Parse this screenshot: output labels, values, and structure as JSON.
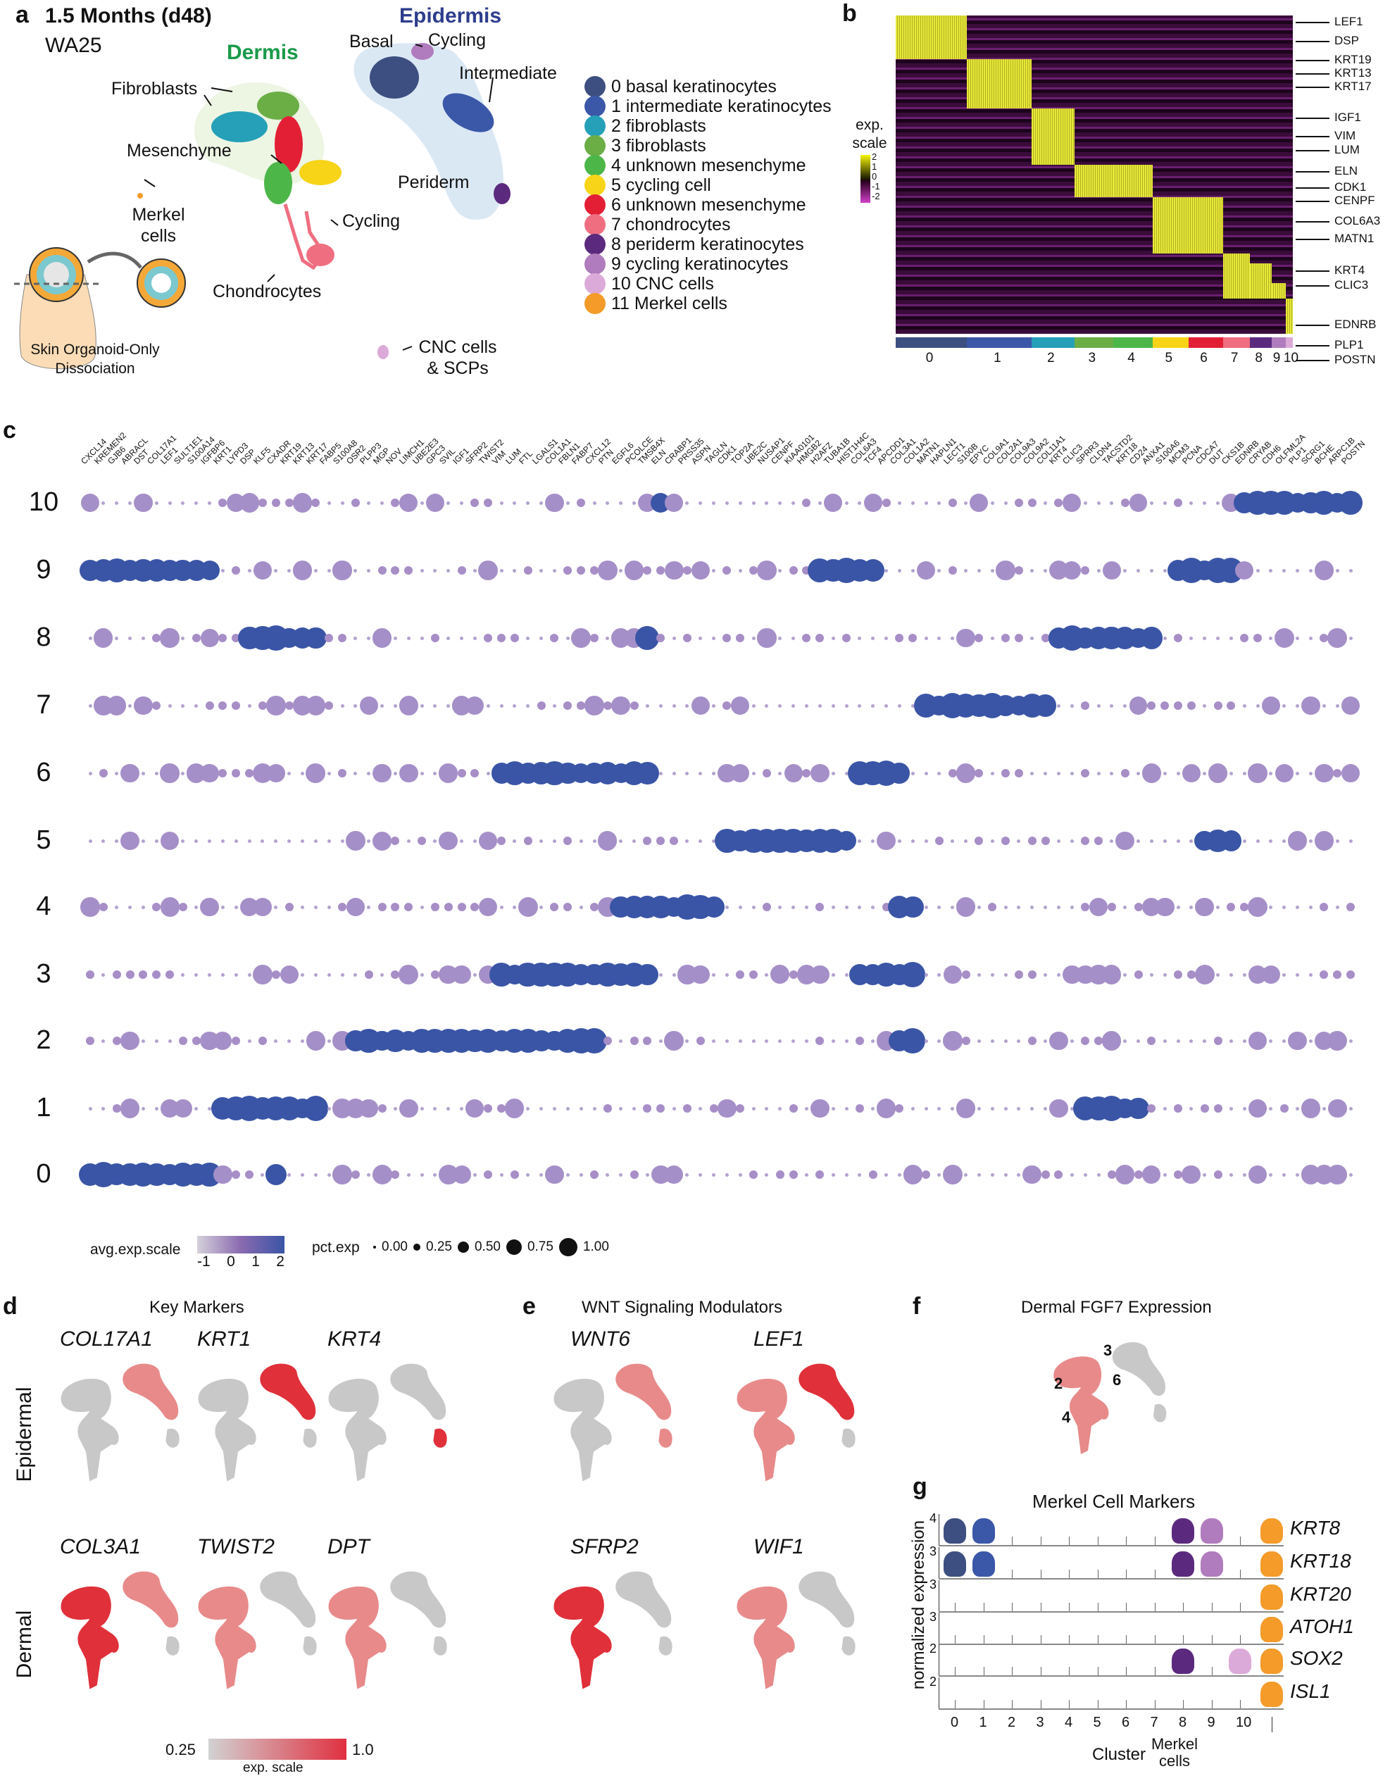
{
  "panel_a": {
    "label": "a",
    "title": "1.5 Months (d48)",
    "subtitle": "WA25",
    "region_dermis": "Dermis",
    "region_epidermis": "Epidermis",
    "annotations": [
      "Fibroblasts",
      "Mesenchyme",
      "Merkel cells",
      "Chondrocytes",
      "Cycling",
      "Basal",
      "Cycling",
      "Intermediate",
      "Periderm",
      "CNC cells & SCPs"
    ],
    "schematic_caption": "Skin Organoid-Only Dissociation",
    "legend": [
      {
        "label": "0 basal keratinocytes",
        "color": "#3d4f80"
      },
      {
        "label": "1 intermediate keratinocytes",
        "color": "#3b57a8"
      },
      {
        "label": "2 fibroblasts",
        "color": "#25a0b8"
      },
      {
        "label": "3 fibroblasts",
        "color": "#6aae45"
      },
      {
        "label": "4 unknown mesenchyme",
        "color": "#4cb648"
      },
      {
        "label": "5 cycling cell",
        "color": "#f7d417"
      },
      {
        "label": "6 unknown mesenchyme",
        "color": "#e31f35"
      },
      {
        "label": "7 chondrocytes",
        "color": "#ef6e80"
      },
      {
        "label": "8 periderm keratinocytes",
        "color": "#5b2a7e"
      },
      {
        "label": "9 cycling keratinocytes",
        "color": "#b07cbd"
      },
      {
        "label": "10 CNC cells",
        "color": "#dcaad8"
      },
      {
        "label": "11 Merkel cells",
        "color": "#f49b2a"
      }
    ]
  },
  "panel_b": {
    "label": "b",
    "scale_title": "exp. scale",
    "scale_ticks": [
      "2",
      "1",
      "0",
      "-1",
      "-2"
    ],
    "highlight_genes": [
      "LEF1",
      "DSP",
      "KRT19",
      "KRT13",
      "KRT17",
      "IGF1",
      "VIM",
      "LUM",
      "ELN",
      "CDK1",
      "CENPF",
      "COL6A3",
      "MATN1",
      "KRT4",
      "CLIC3",
      "EDNRB",
      "PLP1",
      "POSTN"
    ],
    "cluster_labels": [
      "0",
      "1",
      "2",
      "3",
      "4",
      "5",
      "6",
      "7",
      "8",
      "9",
      "10"
    ]
  },
  "panel_c": {
    "label": "c",
    "legend_color_title": "avg.exp.scale",
    "legend_color_ticks": [
      "-1",
      "0",
      "1",
      "2"
    ],
    "legend_size_title": "pct.exp",
    "legend_size_ticks": [
      "0.00",
      "0.25",
      "0.50",
      "0.75",
      "1.00"
    ]
  },
  "panel_d": {
    "label": "d",
    "title": "Key Markers",
    "row_labels": [
      "Epidermal",
      "Dermal"
    ],
    "genes": [
      "COL17A1",
      "KRT1",
      "KRT4",
      "COL3A1",
      "TWIST2",
      "DPT"
    ],
    "scale_min": "0.25",
    "scale_max": "1.0",
    "scale_title": "exp. scale"
  },
  "panel_e": {
    "label": "e",
    "title": "WNT Signaling Modulators",
    "genes": [
      "WNT6",
      "LEF1",
      "SFRP2",
      "WIF1"
    ]
  },
  "panel_f": {
    "label": "f",
    "title": "Dermal FGF7 Expression",
    "cluster_marks": [
      "3",
      "2",
      "6",
      "4"
    ]
  },
  "panel_g": {
    "label": "g",
    "title": "Merkel Cell Markers",
    "ylabel": "normalized expression",
    "xlabel": "Cluster",
    "merkel_label": "Merkel cells",
    "x_ticks": [
      "0",
      "1",
      "2",
      "3",
      "4",
      "5",
      "6",
      "7",
      "8",
      "9",
      "10"
    ],
    "genes": [
      {
        "name": "KRT8",
        "ymax": "4"
      },
      {
        "name": "KRT18",
        "ymax": "3"
      },
      {
        "name": "KRT20",
        "ymax": "3"
      },
      {
        "name": "ATOH1",
        "ymax": "3"
      },
      {
        "name": "SOX2",
        "ymax": "2"
      },
      {
        "name": "ISL1",
        "ymax": "2"
      }
    ]
  },
  "chart_data": [
    {
      "panel": "c",
      "type": "dot",
      "title": "",
      "x_genes": [
        "CXCL14",
        "KREMEN2",
        "GJB6",
        "ABRACL",
        "DST",
        "COL17A1",
        "LEF1",
        "SULT1E1",
        "S100A14",
        "IGFBP6",
        "KRT1",
        "LYPD3",
        "DSP",
        "KLF5",
        "CXADR",
        "KRT19",
        "KRT13",
        "KRT17",
        "FABP5",
        "S100A8",
        "OSR2",
        "PLPP3",
        "MGP",
        "NOV",
        "LIMCH1",
        "UBE2E3",
        "GPC3",
        "SVIL",
        "IGF1",
        "SFRP2",
        "TWIST2",
        "VIM",
        "LUM",
        "FTL",
        "LGALS1",
        "COL1A1",
        "FBLN1",
        "FABP7",
        "CXCL12",
        "PTN",
        "EGFL6",
        "PCOLCE",
        "TMSB4X",
        "ELN",
        "CRABP1",
        "PRSS35",
        "ASPN",
        "TAGLN",
        "CDK1",
        "TOP2A",
        "UBE2C",
        "NUSAP1",
        "CENPF",
        "KIAA0101",
        "HMGB2",
        "H2AFZ",
        "TUBA1B",
        "HIST1H4C",
        "COL6A3",
        "TCF4",
        "APCDD1",
        "COL3A1",
        "COL1A2",
        "MATN1",
        "HAPLN1",
        "LECT1",
        "S100B",
        "EPYC",
        "COL9A1",
        "COL2A1",
        "COL9A3",
        "COL9A2",
        "COL11A1",
        "KRT4",
        "CLIC3",
        "SPRR3",
        "CLDN4",
        "TACSTD2",
        "KRT18",
        "CD24",
        "ANXA1",
        "S100A6",
        "MCM3",
        "PCNA",
        "CDCA7",
        "DUT",
        "CKS1B",
        "EDNRB",
        "CRYAB",
        "CDH6",
        "OLFML2A",
        "PLP1",
        "SCRG1",
        "BCHE",
        "ARPC1B",
        "POSTN"
      ],
      "y_clusters": [
        "10",
        "9",
        "8",
        "7",
        "6",
        "5",
        "4",
        "3",
        "2",
        "1",
        "0"
      ],
      "high_expression_ranges": {
        "10": [
          [
            87,
            95
          ],
          [
            43,
            43
          ]
        ],
        "9": [
          [
            0,
            9
          ],
          [
            82,
            86
          ],
          [
            55,
            59
          ]
        ],
        "8": [
          [
            12,
            17
          ],
          [
            73,
            80
          ],
          [
            42,
            42
          ]
        ],
        "7": [
          [
            63,
            72
          ]
        ],
        "6": [
          [
            31,
            42
          ],
          [
            58,
            61
          ]
        ],
        "5": [
          [
            48,
            57
          ],
          [
            84,
            86
          ]
        ],
        "4": [
          [
            40,
            47
          ],
          [
            61,
            62
          ]
        ],
        "3": [
          [
            31,
            42
          ],
          [
            58,
            62
          ]
        ],
        "2": [
          [
            20,
            30
          ],
          [
            31,
            38
          ],
          [
            61,
            62
          ]
        ],
        "1": [
          [
            10,
            17
          ],
          [
            75,
            79
          ]
        ],
        "0": [
          [
            0,
            9
          ],
          [
            14,
            14
          ]
        ]
      },
      "color_scale": {
        "min": -1,
        "max": 2,
        "low": "#cfcad6",
        "high": "#3a55a6"
      },
      "size_scale": {
        "min": 0,
        "max": 1
      }
    },
    {
      "panel": "b",
      "type": "heatmap",
      "color_scale": {
        "min": -2,
        "max": 2,
        "low": "#d040c8",
        "mid": "#000000",
        "high": "#f5f500"
      },
      "x": [
        "0",
        "1",
        "2",
        "3",
        "4",
        "5",
        "6",
        "7",
        "8",
        "9",
        "10"
      ],
      "row_labels": [
        "LEF1",
        "DSP",
        "KRT19",
        "KRT13",
        "KRT17",
        "IGF1",
        "VIM",
        "LUM",
        "ELN",
        "CDK1",
        "CENPF",
        "COL6A3",
        "MATN1",
        "KRT4",
        "CLIC3",
        "EDNRB",
        "PLP1",
        "POSTN"
      ]
    },
    {
      "panel": "g",
      "type": "violin",
      "x": [
        "0",
        "1",
        "2",
        "3",
        "4",
        "5",
        "6",
        "7",
        "8",
        "9",
        "10",
        "Merkel cells"
      ],
      "series": [
        {
          "name": "KRT8",
          "ymax": 4,
          "expressed_in": [
            "0",
            "1",
            "8",
            "9",
            "Merkel cells"
          ]
        },
        {
          "name": "KRT18",
          "ymax": 3,
          "expressed_in": [
            "0",
            "1",
            "8",
            "9",
            "Merkel cells"
          ]
        },
        {
          "name": "KRT20",
          "ymax": 3,
          "expressed_in": [
            "Merkel cells"
          ]
        },
        {
          "name": "ATOH1",
          "ymax": 3,
          "expressed_in": [
            "Merkel cells"
          ]
        },
        {
          "name": "SOX2",
          "ymax": 2,
          "expressed_in": [
            "8",
            "10",
            "Merkel cells"
          ]
        },
        {
          "name": "ISL1",
          "ymax": 2,
          "expressed_in": [
            "Merkel cells"
          ]
        }
      ]
    }
  ]
}
